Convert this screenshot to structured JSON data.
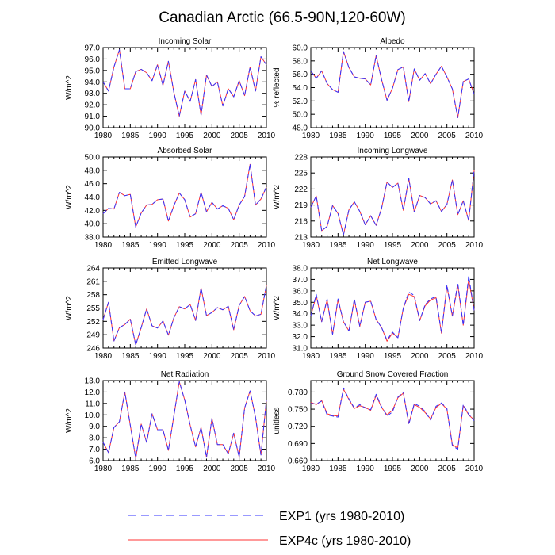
{
  "figure": {
    "title": "Canadian Arctic (66.5-90N,120-60W)",
    "legend": [
      {
        "label": "EXP1 (yrs 1980-2010)",
        "color": "#3333ff",
        "dashed": true
      },
      {
        "label": "EXP4c (yrs 1980-2010)",
        "color": "#ff3333",
        "dashed": false
      }
    ],
    "xticks": [
      "1980",
      "1985",
      "1990",
      "1995",
      "2000",
      "2005",
      "2010"
    ]
  },
  "chart_data": [
    {
      "type": "line",
      "title": "Incoming Solar",
      "ylabel": "W/m^2",
      "xlim": [
        1980,
        2010
      ],
      "ylim": [
        90.0,
        97.0
      ],
      "yticks": [
        "90.0",
        "91.0",
        "92.0",
        "93.0",
        "94.0",
        "95.0",
        "96.0",
        "97.0"
      ],
      "x": [
        1980,
        1981,
        1982,
        1983,
        1984,
        1985,
        1986,
        1987,
        1988,
        1989,
        1990,
        1991,
        1992,
        1993,
        1994,
        1995,
        1996,
        1997,
        1998,
        1999,
        2000,
        2001,
        2002,
        2003,
        2004,
        2005,
        2006,
        2007,
        2008,
        2009,
        2010
      ],
      "series": [
        {
          "name": "EXP1",
          "values": [
            94.0,
            93.2,
            95.3,
            96.8,
            93.4,
            93.4,
            94.9,
            95.1,
            94.8,
            94.1,
            95.5,
            93.7,
            95.8,
            93.1,
            91.0,
            93.2,
            92.3,
            94.2,
            91.1,
            94.6,
            93.6,
            94.0,
            91.9,
            93.4,
            92.7,
            94.1,
            92.8,
            95.3,
            93.2,
            96.2,
            95.5
          ]
        },
        {
          "name": "EXP4c",
          "values": [
            94.0,
            93.2,
            95.3,
            96.8,
            93.4,
            93.4,
            94.9,
            95.1,
            94.8,
            94.1,
            95.5,
            93.7,
            95.8,
            93.1,
            91.0,
            93.2,
            92.3,
            94.2,
            91.1,
            94.6,
            93.6,
            94.0,
            91.9,
            93.4,
            92.7,
            94.1,
            92.8,
            95.3,
            93.2,
            96.2,
            95.5
          ]
        }
      ]
    },
    {
      "type": "line",
      "title": "Albedo",
      "ylabel": "% reflected",
      "xlim": [
        1980,
        2010
      ],
      "ylim": [
        48.0,
        60.0
      ],
      "yticks": [
        "48.0",
        "50.0",
        "52.0",
        "54.0",
        "56.0",
        "58.0",
        "60.0"
      ],
      "x": [
        1980,
        1981,
        1982,
        1983,
        1984,
        1985,
        1986,
        1987,
        1988,
        1989,
        1990,
        1991,
        1992,
        1993,
        1994,
        1995,
        1996,
        1997,
        1998,
        1999,
        2000,
        2001,
        2002,
        2003,
        2004,
        2005,
        2006,
        2007,
        2008,
        2009,
        2010
      ],
      "series": [
        {
          "name": "EXP1",
          "values": [
            56.5,
            55.4,
            56.5,
            54.6,
            53.7,
            53.3,
            59.4,
            57.0,
            55.6,
            55.4,
            55.3,
            54.4,
            58.8,
            55.2,
            52.1,
            53.9,
            56.7,
            57.1,
            51.9,
            56.8,
            55.1,
            56.1,
            54.6,
            56.0,
            57.2,
            55.6,
            53.8,
            49.5,
            54.9,
            55.3,
            53.0
          ]
        },
        {
          "name": "EXP4c",
          "values": [
            56.5,
            55.4,
            56.5,
            54.6,
            53.7,
            53.3,
            59.4,
            57.0,
            55.6,
            55.4,
            55.3,
            54.4,
            58.8,
            55.2,
            52.1,
            53.9,
            56.7,
            57.1,
            51.9,
            56.8,
            55.1,
            56.1,
            54.6,
            56.0,
            57.2,
            55.6,
            53.8,
            49.5,
            54.9,
            55.3,
            53.0
          ]
        }
      ]
    },
    {
      "type": "line",
      "title": "Absorbed Solar",
      "ylabel": "W/m^2",
      "xlim": [
        1980,
        2010
      ],
      "ylim": [
        38.0,
        50.0
      ],
      "yticks": [
        "38.0",
        "40.0",
        "42.0",
        "44.0",
        "46.0",
        "48.0",
        "50.0"
      ],
      "x": [
        1980,
        1981,
        1982,
        1983,
        1984,
        1985,
        1986,
        1987,
        1988,
        1989,
        1990,
        1991,
        1992,
        1993,
        1994,
        1995,
        1996,
        1997,
        1998,
        1999,
        2000,
        2001,
        2002,
        2003,
        2004,
        2005,
        2006,
        2007,
        2008,
        2009,
        2010
      ],
      "series": [
        {
          "name": "EXP1",
          "values": [
            41.5,
            42.3,
            42.2,
            44.7,
            44.2,
            44.4,
            39.5,
            41.6,
            42.8,
            42.9,
            43.6,
            43.7,
            40.4,
            42.7,
            44.6,
            43.6,
            41.0,
            41.5,
            44.7,
            41.8,
            43.2,
            42.2,
            42.7,
            42.3,
            40.6,
            42.8,
            44.1,
            48.9,
            42.8,
            43.7,
            45.5
          ]
        },
        {
          "name": "EXP4c",
          "values": [
            41.5,
            42.3,
            42.2,
            44.7,
            44.2,
            44.4,
            39.5,
            41.6,
            42.8,
            42.9,
            43.6,
            43.7,
            40.4,
            42.7,
            44.6,
            43.6,
            41.0,
            41.5,
            44.7,
            41.8,
            43.2,
            42.2,
            42.7,
            42.3,
            40.6,
            42.8,
            44.1,
            48.9,
            42.8,
            43.7,
            45.5
          ]
        }
      ]
    },
    {
      "type": "line",
      "title": "Incoming Longwave",
      "ylabel": "W/m^2",
      "xlim": [
        1980,
        2010
      ],
      "ylim": [
        213,
        228
      ],
      "yticks": [
        "213",
        "216",
        "219",
        "222",
        "225",
        "228"
      ],
      "x": [
        1980,
        1981,
        1982,
        1983,
        1984,
        1985,
        1986,
        1987,
        1988,
        1989,
        1990,
        1991,
        1992,
        1993,
        1994,
        1995,
        1996,
        1997,
        1998,
        1999,
        2000,
        2001,
        2002,
        2003,
        2004,
        2005,
        2006,
        2007,
        2008,
        2009,
        2010
      ],
      "series": [
        {
          "name": "EXP1",
          "values": [
            218.6,
            220.7,
            214.2,
            215.0,
            218.9,
            217.4,
            213.4,
            218.1,
            219.6,
            217.8,
            215.3,
            217.0,
            215.2,
            218.4,
            223.3,
            222.3,
            223.1,
            218.0,
            224.0,
            217.7,
            220.8,
            220.4,
            219.2,
            219.8,
            217.8,
            219.1,
            223.7,
            217.2,
            219.8,
            216.1,
            225.5
          ]
        },
        {
          "name": "EXP4c",
          "values": [
            218.6,
            220.7,
            214.2,
            215.0,
            218.9,
            217.4,
            213.4,
            218.1,
            219.6,
            217.8,
            215.3,
            217.0,
            215.2,
            218.4,
            223.3,
            222.3,
            223.1,
            218.0,
            224.0,
            217.7,
            220.8,
            220.4,
            219.2,
            219.8,
            217.8,
            219.1,
            223.7,
            217.2,
            219.8,
            216.1,
            225.5
          ]
        }
      ]
    },
    {
      "type": "line",
      "title": "Emitted Longwave",
      "ylabel": "W/m^2",
      "xlim": [
        1980,
        2010
      ],
      "ylim": [
        246,
        264
      ],
      "yticks": [
        "246",
        "249",
        "252",
        "255",
        "258",
        "261",
        "264"
      ],
      "x": [
        1980,
        1981,
        1982,
        1983,
        1984,
        1985,
        1986,
        1987,
        1988,
        1989,
        1990,
        1991,
        1992,
        1993,
        1994,
        1995,
        1996,
        1997,
        1998,
        1999,
        2000,
        2001,
        2002,
        2003,
        2004,
        2005,
        2006,
        2007,
        2008,
        2009,
        2010
      ],
      "series": [
        {
          "name": "EXP1",
          "values": [
            252.4,
            256.3,
            247.6,
            250.6,
            251.3,
            252.5,
            246.7,
            250.6,
            254.8,
            251.0,
            250.5,
            252.1,
            248.9,
            252.8,
            255.3,
            254.8,
            255.8,
            252.2,
            259.5,
            253.3,
            254.0,
            255.1,
            254.6,
            255.4,
            250.1,
            255.6,
            257.6,
            254.4,
            253.2,
            253.6,
            260.1
          ]
        },
        {
          "name": "EXP4c",
          "values": [
            252.4,
            256.3,
            247.6,
            250.6,
            251.3,
            252.5,
            246.7,
            250.6,
            254.8,
            251.0,
            250.5,
            252.1,
            248.9,
            252.8,
            255.3,
            254.8,
            255.8,
            252.2,
            259.5,
            253.3,
            254.0,
            255.1,
            254.6,
            255.4,
            250.1,
            255.6,
            257.6,
            254.4,
            253.2,
            253.6,
            260.1
          ]
        }
      ]
    },
    {
      "type": "line",
      "title": "Net Longwave",
      "ylabel": "W/m^2",
      "xlim": [
        1980,
        2010
      ],
      "ylim": [
        31.0,
        38.0
      ],
      "yticks": [
        "31.0",
        "32.0",
        "33.0",
        "34.0",
        "35.0",
        "36.0",
        "37.0",
        "38.0"
      ],
      "x": [
        1980,
        1981,
        1982,
        1983,
        1984,
        1985,
        1986,
        1987,
        1988,
        1989,
        1990,
        1991,
        1992,
        1993,
        1994,
        1995,
        1996,
        1997,
        1998,
        1999,
        2000,
        2001,
        2002,
        2003,
        2004,
        2005,
        2006,
        2007,
        2008,
        2009,
        2010
      ],
      "series": [
        {
          "name": "EXP1",
          "values": [
            33.8,
            35.7,
            33.3,
            35.3,
            32.2,
            35.3,
            33.3,
            32.5,
            35.3,
            32.9,
            35.0,
            35.1,
            33.5,
            32.8,
            31.7,
            32.4,
            31.9,
            34.5,
            35.9,
            35.6,
            33.4,
            34.8,
            35.3,
            35.5,
            32.3,
            36.5,
            33.8,
            36.7,
            33.0,
            37.3,
            34.3
          ]
        },
        {
          "name": "EXP4c",
          "values": [
            33.8,
            35.6,
            33.3,
            35.2,
            32.2,
            35.2,
            33.3,
            32.5,
            35.2,
            32.9,
            35.0,
            35.1,
            33.5,
            32.8,
            31.6,
            32.3,
            31.9,
            34.5,
            35.7,
            35.5,
            33.4,
            34.7,
            35.2,
            35.4,
            32.3,
            36.4,
            33.8,
            36.5,
            33.0,
            37.0,
            34.3
          ]
        }
      ]
    },
    {
      "type": "line",
      "title": "Net Radiation",
      "ylabel": "W/m^2",
      "xlim": [
        1980,
        2010
      ],
      "ylim": [
        6.0,
        13.0
      ],
      "yticks": [
        "6.0",
        "7.0",
        "8.0",
        "9.0",
        "10.0",
        "11.0",
        "12.0",
        "13.0"
      ],
      "x": [
        1980,
        1981,
        1982,
        1983,
        1984,
        1985,
        1986,
        1987,
        1988,
        1989,
        1990,
        1991,
        1992,
        1993,
        1994,
        1995,
        1996,
        1997,
        1998,
        1999,
        2000,
        2001,
        2002,
        2003,
        2004,
        2005,
        2006,
        2007,
        2008,
        2009,
        2010
      ],
      "series": [
        {
          "name": "EXP1",
          "values": [
            7.6,
            6.7,
            8.9,
            9.4,
            12.0,
            9.1,
            6.2,
            9.2,
            7.6,
            10.1,
            8.7,
            8.7,
            6.9,
            9.9,
            12.9,
            11.3,
            9.1,
            7.2,
            8.9,
            6.3,
            9.7,
            7.4,
            7.4,
            6.6,
            8.4,
            6.3,
            10.6,
            12.1,
            9.8,
            6.5,
            11.3
          ]
        },
        {
          "name": "EXP4c",
          "values": [
            7.6,
            6.7,
            8.9,
            9.4,
            12.0,
            9.1,
            6.2,
            9.2,
            7.6,
            10.1,
            8.7,
            8.7,
            6.9,
            9.9,
            12.9,
            11.3,
            9.1,
            7.2,
            8.9,
            6.3,
            9.7,
            7.4,
            7.4,
            6.6,
            8.4,
            6.3,
            10.6,
            12.1,
            9.8,
            6.5,
            11.3
          ]
        }
      ]
    },
    {
      "type": "line",
      "title": "Ground Snow Covered Fraction",
      "ylabel": "unitless",
      "xlim": [
        1980,
        2010
      ],
      "ylim": [
        0.66,
        0.8
      ],
      "yticks": [
        "0.660",
        "0.690",
        "0.720",
        "0.750",
        "0.780"
      ],
      "x": [
        1980,
        1981,
        1982,
        1983,
        1984,
        1985,
        1986,
        1987,
        1988,
        1989,
        1990,
        1991,
        1992,
        1993,
        1994,
        1995,
        1996,
        1997,
        1998,
        1999,
        2000,
        2001,
        2002,
        2003,
        2004,
        2005,
        2006,
        2007,
        2008,
        2009,
        2010
      ],
      "series": [
        {
          "name": "EXP1",
          "values": [
            0.76,
            0.759,
            0.764,
            0.74,
            0.738,
            0.736,
            0.787,
            0.768,
            0.752,
            0.758,
            0.752,
            0.749,
            0.776,
            0.754,
            0.738,
            0.745,
            0.771,
            0.78,
            0.723,
            0.76,
            0.755,
            0.746,
            0.731,
            0.755,
            0.761,
            0.751,
            0.686,
            0.68,
            0.758,
            0.741,
            0.73
          ]
        },
        {
          "name": "EXP4c",
          "values": [
            0.762,
            0.758,
            0.765,
            0.742,
            0.739,
            0.738,
            0.785,
            0.767,
            0.751,
            0.756,
            0.753,
            0.748,
            0.774,
            0.753,
            0.74,
            0.748,
            0.77,
            0.778,
            0.725,
            0.758,
            0.753,
            0.744,
            0.733,
            0.753,
            0.76,
            0.75,
            0.688,
            0.682,
            0.756,
            0.74,
            0.731
          ]
        }
      ]
    }
  ]
}
